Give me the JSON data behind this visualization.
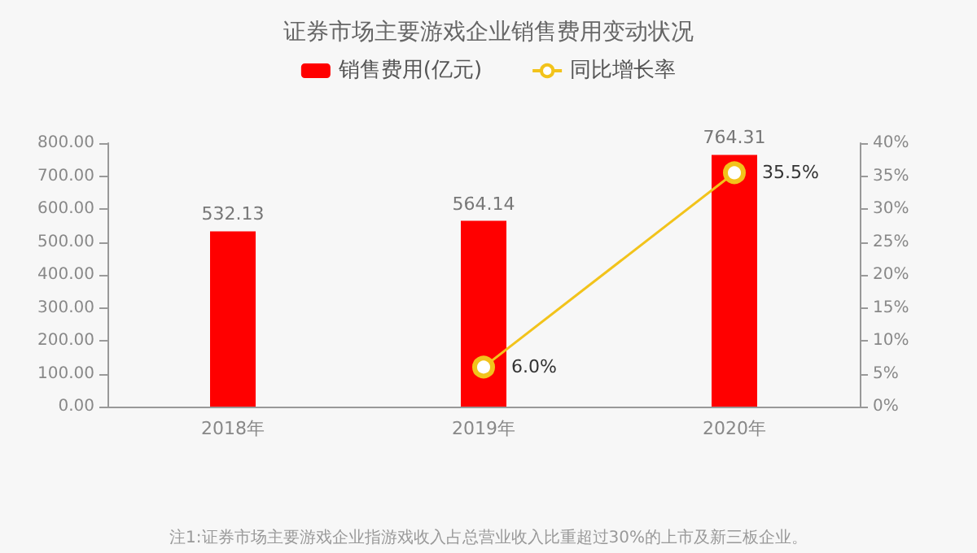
{
  "chart_data": {
    "type": "bar",
    "title": "证券市场主要游戏企业销售费用变动状况",
    "categories": [
      "2018年",
      "2019年",
      "2020年"
    ],
    "series": [
      {
        "name": "销售费用(亿元)",
        "color": "#ff0000",
        "values": [
          532.13,
          564.14,
          764.31
        ],
        "value_labels": [
          "532.13",
          "564.14",
          "764.31"
        ]
      },
      {
        "name": "同比增长率",
        "type": "line",
        "axis": "y2",
        "color": "#f2c31b",
        "values": [
          null,
          6.0,
          35.5
        ],
        "value_labels": [
          null,
          "6.0%",
          "35.5%"
        ],
        "marker": "circle"
      }
    ],
    "ylim": [
      0,
      800
    ],
    "yticks": [
      {
        "value": 0,
        "label": "0.00"
      },
      {
        "value": 100,
        "label": "100.00"
      },
      {
        "value": 200,
        "label": "200.00"
      },
      {
        "value": 300,
        "label": "300.00"
      },
      {
        "value": 400,
        "label": "400.00"
      },
      {
        "value": 500,
        "label": "500.00"
      },
      {
        "value": 600,
        "label": "600.00"
      },
      {
        "value": 700,
        "label": "700.00"
      },
      {
        "value": 800,
        "label": "800.00"
      }
    ],
    "y2lim": [
      0,
      40
    ],
    "y2ticks": [
      {
        "value": 0,
        "label": "0%"
      },
      {
        "value": 5,
        "label": "5%"
      },
      {
        "value": 10,
        "label": "10%"
      },
      {
        "value": 15,
        "label": "15%"
      },
      {
        "value": 20,
        "label": "20%"
      },
      {
        "value": 25,
        "label": "25%"
      },
      {
        "value": 30,
        "label": "30%"
      },
      {
        "value": 35,
        "label": "35%"
      },
      {
        "value": 40,
        "label": "40%"
      }
    ],
    "annotations": [
      "注1:证券市场主要游戏企业指游戏收入占总营业收入比重超过30%的上市及新三板企业。"
    ],
    "legend": "top",
    "grid": false
  }
}
